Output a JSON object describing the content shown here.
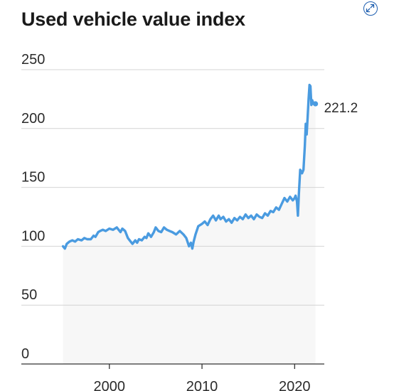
{
  "chart_data": {
    "type": "area",
    "title": "Used vehicle value index",
    "xlabel": "",
    "ylabel": "",
    "ylim": [
      0,
      250
    ],
    "xlim": [
      1990.5,
      2023.2
    ],
    "grid": true,
    "legend": "none",
    "yticks": [
      0,
      50,
      100,
      150,
      200,
      250
    ],
    "xticks": [
      2000,
      2010,
      2020
    ],
    "line_color": "#4a9be0",
    "fill_color": "#f7f7f7",
    "end_label": "221.2",
    "series": [
      {
        "x": [
          1995.0,
          1995.2,
          1995.4,
          1995.7,
          1996.0,
          1996.3,
          1996.6,
          1997.0,
          1997.3,
          1997.6,
          1998.0,
          1998.3,
          1998.5,
          1998.8,
          1999.0,
          1999.3,
          1999.6,
          2000.0,
          2000.4,
          2000.8,
          2001.0,
          2001.2,
          2001.4,
          2001.7,
          2002.0,
          2002.3,
          2002.5,
          2002.8,
          2003.0,
          2003.2,
          2003.5,
          2003.8,
          2004.0,
          2004.2,
          2004.5,
          2004.8,
          2005.0,
          2005.3,
          2005.6,
          2005.9,
          2006.2,
          2006.5,
          2006.8,
          2007.2,
          2007.6,
          2008.0,
          2008.3,
          2008.6,
          2008.8,
          2008.95,
          2009.1,
          2009.3,
          2009.6,
          2010.0,
          2010.3,
          2010.6,
          2010.9,
          2011.2,
          2011.5,
          2011.8,
          2012.0,
          2012.3,
          2012.6,
          2012.9,
          2013.2,
          2013.5,
          2013.8,
          2014.1,
          2014.4,
          2014.7,
          2015.0,
          2015.3,
          2015.6,
          2015.9,
          2016.2,
          2016.5,
          2016.8,
          2017.1,
          2017.4,
          2017.7,
          2018.0,
          2018.3,
          2018.6,
          2018.9,
          2019.2,
          2019.5,
          2019.8,
          2020.0,
          2020.1,
          2020.25,
          2020.35,
          2020.45,
          2020.6,
          2020.8,
          2020.95,
          2021.1,
          2021.2,
          2021.3,
          2021.4,
          2021.5,
          2021.6,
          2021.7,
          2021.8,
          2021.9,
          2022.0,
          2022.1,
          2022.25
        ],
        "values": [
          100,
          98,
          102,
          104,
          105,
          104,
          106,
          105,
          107,
          106,
          106,
          109,
          108,
          112,
          113,
          114,
          113,
          115,
          114,
          116,
          114,
          112,
          115,
          113,
          107,
          104,
          102,
          105,
          103,
          106,
          105,
          108,
          107,
          111,
          108,
          112,
          116,
          113,
          112,
          116,
          114,
          113,
          112,
          110,
          113,
          110,
          107,
          100,
          103,
          98,
          104,
          110,
          117,
          119,
          121,
          118,
          123,
          126,
          122,
          126,
          123,
          125,
          121,
          123,
          120,
          124,
          122,
          125,
          123,
          127,
          124,
          126,
          123,
          127,
          125,
          124,
          128,
          126,
          130,
          129,
          133,
          131,
          136,
          141,
          138,
          142,
          139,
          141,
          143,
          138,
          126,
          144,
          165,
          162,
          165,
          185,
          204,
          195,
          210,
          225,
          237,
          236,
          220,
          224,
          221,
          222,
          221
        ]
      }
    ]
  }
}
